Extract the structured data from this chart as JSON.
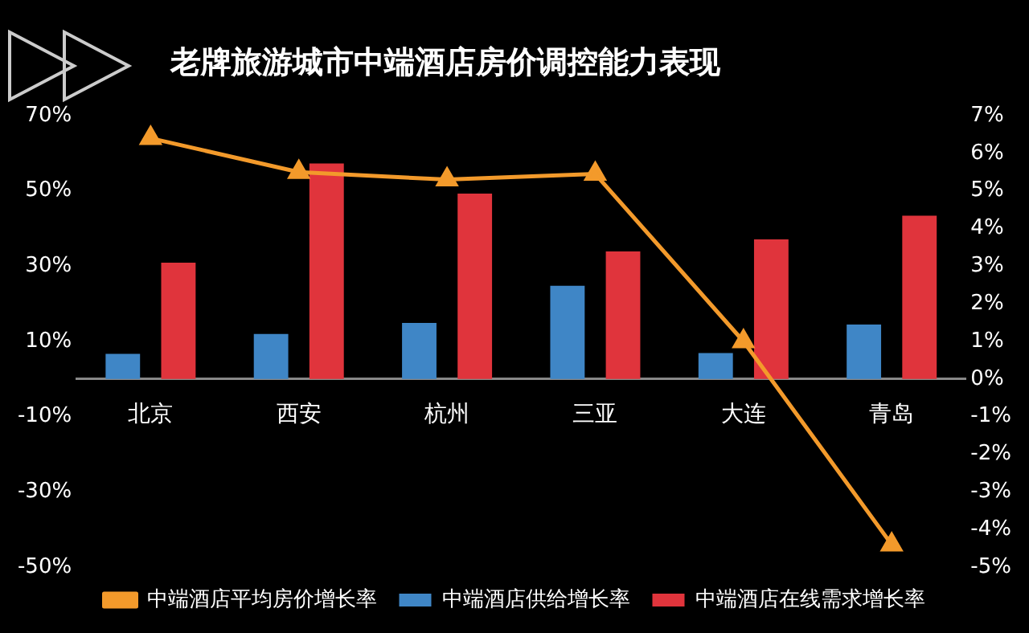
{
  "chart_data": {
    "type": "bar",
    "title": "老牌旅游城市中端酒店房价调控能力表现",
    "categories": [
      "北京",
      "西安",
      "杭州",
      "三亚",
      "大连",
      "青岛"
    ],
    "series": [
      {
        "name": "中端酒店供给增长率",
        "color": "#3f86c6",
        "values": [
          6.7,
          12,
          14.9,
          24.8,
          6.9,
          14.5
        ]
      },
      {
        "name": "中端酒店在线需求增长率",
        "color": "#e0343c",
        "values": [
          30.9,
          57.3,
          49.3,
          33.9,
          37.1,
          43.4
        ]
      },
      {
        "name": "中端酒店平均房价增长率",
        "type": "line",
        "axis": "y2",
        "color": "#f39a2b",
        "marker": "triangle",
        "values": [
          6.4,
          5.5,
          5.3,
          5.45,
          1.0,
          -4.4
        ]
      }
    ],
    "ylim": [
      -50,
      70
    ],
    "yticks": [
      {
        "value": 70,
        "label": "70%"
      },
      {
        "value": 50,
        "label": "50%"
      },
      {
        "value": 30,
        "label": "30%"
      },
      {
        "value": 10,
        "label": "10%"
      },
      {
        "value": -10,
        "label": "-10%"
      },
      {
        "value": -30,
        "label": "-30%"
      },
      {
        "value": -50,
        "label": "-50%"
      }
    ],
    "y2lim": [
      -5,
      7
    ],
    "y2ticks": [
      {
        "value": 7,
        "label": "7%"
      },
      {
        "value": 6,
        "label": "6%"
      },
      {
        "value": 5,
        "label": "5%"
      },
      {
        "value": 4,
        "label": "4%"
      },
      {
        "value": 3,
        "label": "3%"
      },
      {
        "value": 2,
        "label": "2%"
      },
      {
        "value": 1,
        "label": "1%"
      },
      {
        "value": 0,
        "label": "0%"
      },
      {
        "value": -1,
        "label": "-1%"
      },
      {
        "value": -2,
        "label": "-2%"
      },
      {
        "value": -3,
        "label": "-3%"
      },
      {
        "value": -4,
        "label": "-4%"
      },
      {
        "value": -5,
        "label": "-5%"
      }
    ],
    "grid": false,
    "legend": "bottom"
  }
}
